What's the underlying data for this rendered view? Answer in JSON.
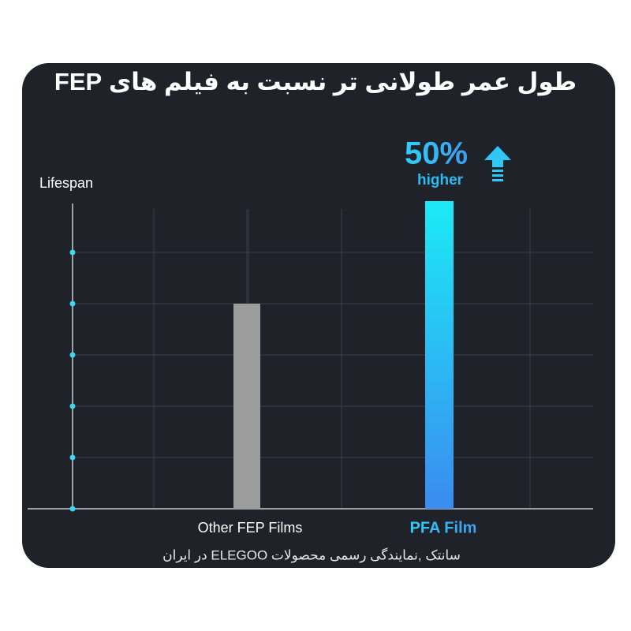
{
  "chart_data": {
    "type": "bar",
    "title": "طول عمر طولانی تر نسبت به فیلم های FEP",
    "y_label": "Lifespan",
    "categories": [
      "Other FEP Films",
      "PFA Film"
    ],
    "values": [
      4,
      6
    ],
    "colors": [
      "#9c9c9c",
      "#1ceaf6"
    ],
    "ylim": [
      0,
      6
    ],
    "yticks": [
      0,
      1,
      2,
      3,
      4,
      5
    ],
    "grid": true,
    "annotation": {
      "value": "50%",
      "text": "higher"
    },
    "footer": "سانتک ,نمایندگی رسمی محصولات ELEGOO در ایران"
  }
}
